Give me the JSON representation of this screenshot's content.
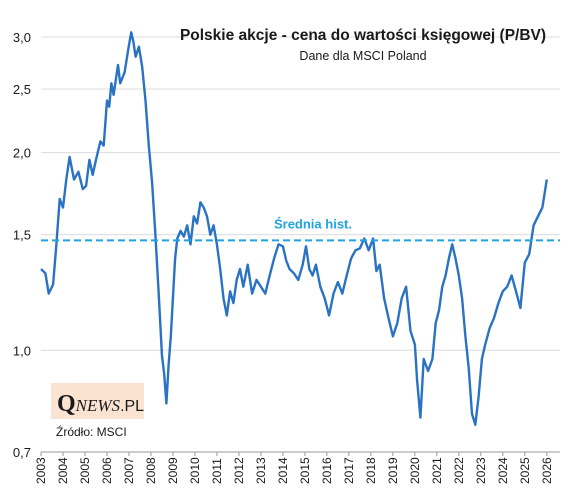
{
  "chart_data": {
    "type": "line",
    "title": "Polskie akcje - cena do wartości księgowej (P/BV)",
    "subtitle": "Dane dla MSCI Poland",
    "y_scale": "log",
    "ylim": [
      0.7,
      3.0
    ],
    "y_ticks": [
      0.7,
      1.0,
      1.5,
      2.0,
      2.5,
      3.0
    ],
    "y_tick_labels": [
      "0,7",
      "1,0",
      "1,5",
      "2,0",
      "2,5",
      "3,0"
    ],
    "xlim": [
      2003,
      2026.6
    ],
    "x_ticks": [
      2003,
      2004,
      2005,
      2006,
      2007,
      2008,
      2009,
      2010,
      2011,
      2012,
      2013,
      2014,
      2015,
      2016,
      2017,
      2018,
      2019,
      2020,
      2021,
      2022,
      2023,
      2024,
      2025,
      2026
    ],
    "x_tick_labels": [
      "2003",
      "2004",
      "2005",
      "2006",
      "2007",
      "2008",
      "2009",
      "2010",
      "2011",
      "2012",
      "2013",
      "2014",
      "2015",
      "2016",
      "2017",
      "2018",
      "2019",
      "2020",
      "2021",
      "2022",
      "2023",
      "2024",
      "2025",
      "2026"
    ],
    "grid": "horizontal",
    "series": [
      {
        "color": "#2a72c3",
        "x": [
          2003.0,
          2003.2,
          2003.35,
          2003.55,
          2003.7,
          2003.85,
          2004.0,
          2004.15,
          2004.3,
          2004.5,
          2004.7,
          2004.9,
          2005.05,
          2005.2,
          2005.35,
          2005.5,
          2005.7,
          2005.85,
          2006.0,
          2006.1,
          2006.2,
          2006.3,
          2006.4,
          2006.5,
          2006.6,
          2006.8,
          2006.95,
          2007.1,
          2007.2,
          2007.3,
          2007.45,
          2007.6,
          2007.75,
          2007.9,
          2008.05,
          2008.2,
          2008.35,
          2008.5,
          2008.6,
          2008.7,
          2008.8,
          2008.9,
          2009.0,
          2009.1,
          2009.2,
          2009.35,
          2009.5,
          2009.65,
          2009.8,
          2009.95,
          2010.1,
          2010.25,
          2010.4,
          2010.55,
          2010.7,
          2010.85,
          2011.0,
          2011.15,
          2011.3,
          2011.45,
          2011.6,
          2011.75,
          2011.9,
          2012.05,
          2012.2,
          2012.4,
          2012.6,
          2012.8,
          2013.0,
          2013.2,
          2013.4,
          2013.6,
          2013.8,
          2014.0,
          2014.15,
          2014.3,
          2014.5,
          2014.7,
          2014.9,
          2015.05,
          2015.2,
          2015.35,
          2015.5,
          2015.7,
          2015.9,
          2016.1,
          2016.3,
          2016.5,
          2016.7,
          2016.9,
          2017.1,
          2017.3,
          2017.5,
          2017.7,
          2017.9,
          2018.1,
          2018.25,
          2018.4,
          2018.6,
          2018.8,
          2019.0,
          2019.2,
          2019.4,
          2019.6,
          2019.8,
          2020.0,
          2020.1,
          2020.25,
          2020.4,
          2020.6,
          2020.8,
          2020.95,
          2021.1,
          2021.25,
          2021.4,
          2021.55,
          2021.7,
          2021.85,
          2022.0,
          2022.15,
          2022.3,
          2022.45,
          2022.6,
          2022.75,
          2022.9,
          2023.05,
          2023.2,
          2023.4,
          2023.6,
          2023.8,
          2024.0,
          2024.2,
          2024.4,
          2024.6,
          2024.8,
          2025.0,
          2025.2,
          2025.4,
          2025.6,
          2025.8,
          2026.0
        ],
        "y": [
          1.33,
          1.31,
          1.22,
          1.26,
          1.45,
          1.7,
          1.65,
          1.82,
          1.97,
          1.82,
          1.87,
          1.76,
          1.78,
          1.95,
          1.85,
          1.95,
          2.08,
          2.05,
          2.4,
          2.35,
          2.55,
          2.45,
          2.58,
          2.72,
          2.55,
          2.65,
          2.85,
          3.05,
          2.95,
          2.8,
          2.9,
          2.7,
          2.4,
          2.05,
          1.8,
          1.5,
          1.22,
          0.98,
          0.92,
          0.83,
          0.95,
          1.05,
          1.2,
          1.38,
          1.48,
          1.52,
          1.49,
          1.55,
          1.45,
          1.6,
          1.56,
          1.68,
          1.65,
          1.6,
          1.5,
          1.55,
          1.45,
          1.33,
          1.2,
          1.13,
          1.23,
          1.18,
          1.28,
          1.33,
          1.25,
          1.35,
          1.22,
          1.28,
          1.25,
          1.22,
          1.3,
          1.38,
          1.45,
          1.44,
          1.37,
          1.33,
          1.31,
          1.28,
          1.35,
          1.44,
          1.33,
          1.3,
          1.35,
          1.25,
          1.2,
          1.13,
          1.22,
          1.27,
          1.22,
          1.3,
          1.38,
          1.42,
          1.43,
          1.48,
          1.42,
          1.48,
          1.32,
          1.35,
          1.2,
          1.12,
          1.05,
          1.1,
          1.2,
          1.25,
          1.07,
          1.02,
          0.9,
          0.79,
          0.97,
          0.93,
          0.97,
          1.1,
          1.15,
          1.25,
          1.3,
          1.38,
          1.45,
          1.38,
          1.3,
          1.2,
          1.05,
          0.94,
          0.8,
          0.77,
          0.85,
          0.97,
          1.02,
          1.08,
          1.12,
          1.18,
          1.23,
          1.25,
          1.3,
          1.23,
          1.16,
          1.36,
          1.4,
          1.55,
          1.6,
          1.65,
          1.82
        ]
      }
    ],
    "reference_line": {
      "value": 1.47,
      "label": "Średnia hist.",
      "color": "#21a3e0",
      "style": "dashed"
    },
    "annotation": {
      "source": "Źródło: MSCI",
      "logo_q": "Q",
      "logo_news": "NEWS",
      "logo_pl": ".PL"
    }
  }
}
